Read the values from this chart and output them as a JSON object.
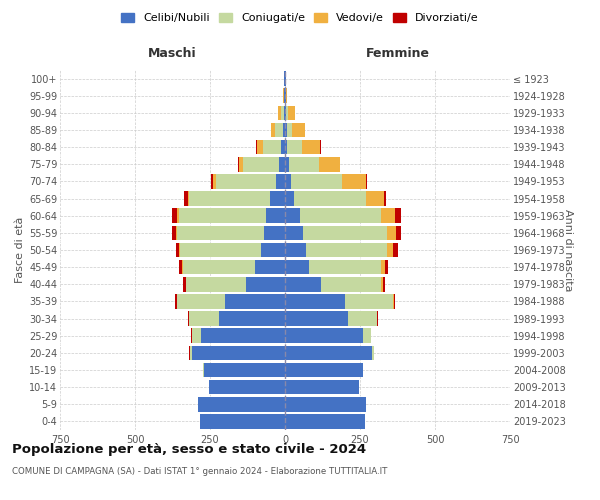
{
  "age_groups_bottom_to_top": [
    "0-4",
    "5-9",
    "10-14",
    "15-19",
    "20-24",
    "25-29",
    "30-34",
    "35-39",
    "40-44",
    "45-49",
    "50-54",
    "55-59",
    "60-64",
    "65-69",
    "70-74",
    "75-79",
    "80-84",
    "85-89",
    "90-94",
    "95-99",
    "100+"
  ],
  "birth_years_bottom_to_top": [
    "2019-2023",
    "2014-2018",
    "2009-2013",
    "2004-2008",
    "1999-2003",
    "1994-1998",
    "1989-1993",
    "1984-1988",
    "1979-1983",
    "1974-1978",
    "1969-1973",
    "1964-1968",
    "1959-1963",
    "1954-1958",
    "1949-1953",
    "1944-1948",
    "1939-1943",
    "1934-1938",
    "1929-1933",
    "1924-1928",
    "≤ 1923"
  ],
  "male_celibi": [
    285,
    290,
    255,
    270,
    310,
    280,
    220,
    200,
    130,
    100,
    80,
    70,
    65,
    50,
    30,
    20,
    15,
    8,
    4,
    2,
    2
  ],
  "male_coniugati": [
    0,
    0,
    0,
    3,
    8,
    30,
    100,
    160,
    200,
    240,
    270,
    290,
    290,
    270,
    200,
    120,
    60,
    25,
    10,
    2,
    0
  ],
  "male_vedovi": [
    0,
    0,
    0,
    0,
    0,
    0,
    0,
    1,
    1,
    2,
    2,
    3,
    4,
    5,
    10,
    15,
    20,
    15,
    8,
    2,
    0
  ],
  "male_divorziati": [
    0,
    0,
    0,
    0,
    2,
    2,
    5,
    5,
    10,
    12,
    12,
    15,
    18,
    12,
    8,
    3,
    1,
    0,
    0,
    0,
    0
  ],
  "female_celibi": [
    265,
    270,
    245,
    260,
    290,
    260,
    210,
    200,
    120,
    80,
    70,
    60,
    50,
    30,
    20,
    12,
    8,
    5,
    3,
    2,
    2
  ],
  "female_coniugati": [
    0,
    0,
    0,
    1,
    6,
    25,
    95,
    160,
    200,
    240,
    270,
    280,
    270,
    240,
    170,
    100,
    50,
    18,
    6,
    1,
    0
  ],
  "female_vedovi": [
    0,
    0,
    0,
    0,
    1,
    1,
    2,
    3,
    5,
    12,
    20,
    30,
    45,
    60,
    80,
    70,
    60,
    45,
    25,
    5,
    2
  ],
  "female_divorziati": [
    0,
    0,
    0,
    0,
    0,
    1,
    3,
    5,
    8,
    12,
    15,
    18,
    20,
    8,
    4,
    2,
    1,
    0,
    0,
    0,
    0
  ],
  "colors": {
    "celibi": "#4472c4",
    "coniugati": "#c5d9a0",
    "vedovi": "#f0b040",
    "divorziati": "#c00000"
  },
  "title_main": "Popolazione per età, sesso e stato civile - 2024",
  "title_sub": "COMUNE DI CAMPAGNA (SA) - Dati ISTAT 1° gennaio 2024 - Elaborazione TUTTITALIA.IT",
  "xlabel_left": "Maschi",
  "xlabel_right": "Femmine",
  "ylabel_left": "Fasce di età",
  "ylabel_right": "Anni di nascita",
  "xlim": 750,
  "bg_color": "#ffffff",
  "grid_color": "#cccccc",
  "bar_height": 0.85
}
